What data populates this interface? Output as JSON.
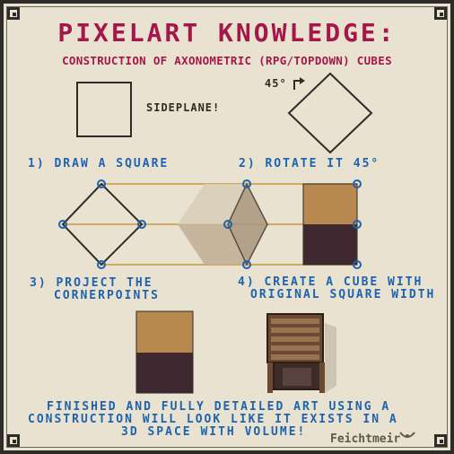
{
  "title": "PIXELART KNOWLEDGE:",
  "subtitle": "CONSTRUCTION OF AXONOMETRIC (RPG/TOPDOWN) CUBES",
  "sideplane_label": "SIDEPLANE!",
  "rotation_label": "45°",
  "steps": {
    "step1": "1) DRAW A SQUARE",
    "step2": "2) ROTATE IT 45°",
    "step3_line1": "3) PROJECT THE",
    "step3_line2": "CORNERPOINTS",
    "step4_line1": "4) CREATE A CUBE WITH",
    "step4_line2": "ORIGINAL SQUARE WIDTH"
  },
  "footer": {
    "line1": "FINISHED AND FULLY DETAILED ART USING A",
    "line2": "CONSTRUCTION WILL LOOK LIKE IT EXISTS IN A",
    "line3": "3D SPACE WITH VOLUME!"
  },
  "signature": "Feichtmeir",
  "colors": {
    "background": "#e9e2d0",
    "title": "#a3174a",
    "step_text": "#1c63b0",
    "cube_top": "#b8894f",
    "cube_bottom": "#3f2830",
    "guide_line": "#c8963f",
    "ghost_cube": "#c9b8a0"
  }
}
